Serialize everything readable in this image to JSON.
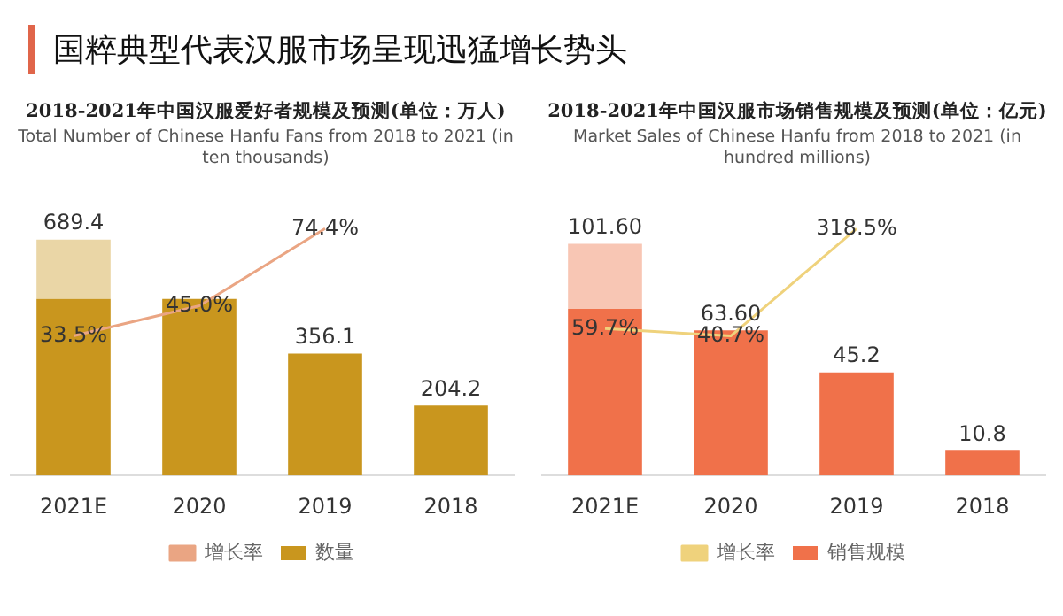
{
  "chart_data": [
    {
      "type": "bar",
      "title": "2018-2021年中国汉服爱好者规模及预测(单位：万人)",
      "subtitle": "Total Number of Chinese Hanfu Fans from 2018 to 2021 (in ten thousands)",
      "annotations": [
        "国粹典型代表汉服市场呈现迅猛增长势头"
      ],
      "categories": [
        "2021E",
        "2020",
        "2019",
        "2018"
      ],
      "stacked": true,
      "legend": "bottom",
      "grid": false,
      "tick_labels": "x",
      "series": [
        {
          "name": "数量",
          "color": "#c9961e",
          "values": [
            516,
            516,
            356.1,
            204.2
          ],
          "value_labels": [
            null,
            null,
            "356.1",
            "204.2"
          ]
        },
        {
          "color": "#ead6a6",
          "values": [
            173.4,
            null,
            null,
            null
          ]
        },
        {
          "name": "增长率",
          "type": "line",
          "axis": "y2",
          "color": "#eaa583",
          "values": [
            33.5,
            45.0,
            74.4,
            null
          ],
          "value_labels": [
            "33.5%",
            "45.0%",
            "74.4%",
            null
          ]
        }
      ],
      "totals": [
        "689.4",
        null,
        null,
        null
      ]
    },
    {
      "type": "bar",
      "title": "2018-2021年中国汉服市场销售规模及预测(单位：亿元)",
      "subtitle": "Market Sales of Chinese Hanfu from 2018 to 2021 (in hundred millions)",
      "categories": [
        "2021E",
        "2020",
        "2019",
        "2018"
      ],
      "stacked": true,
      "legend": "bottom",
      "grid": false,
      "tick_labels": "x",
      "series": [
        {
          "name": "销售规模",
          "color": "#f0714a",
          "values": [
            73,
            63.6,
            45.2,
            10.8
          ],
          "value_labels": [
            null,
            "63.60",
            "45.2",
            "10.8"
          ]
        },
        {
          "color": "#f8c6b4",
          "values": [
            28.6,
            null,
            null,
            null
          ]
        },
        {
          "name": "增长率",
          "type": "line",
          "axis": "y2",
          "color": "#efd27c",
          "values": [
            59.7,
            40.7,
            318.5,
            null
          ],
          "value_labels": [
            "59.7%",
            "40.7%",
            "318.5%",
            null
          ]
        }
      ],
      "totals": [
        "101.60",
        null,
        null,
        null
      ]
    }
  ]
}
